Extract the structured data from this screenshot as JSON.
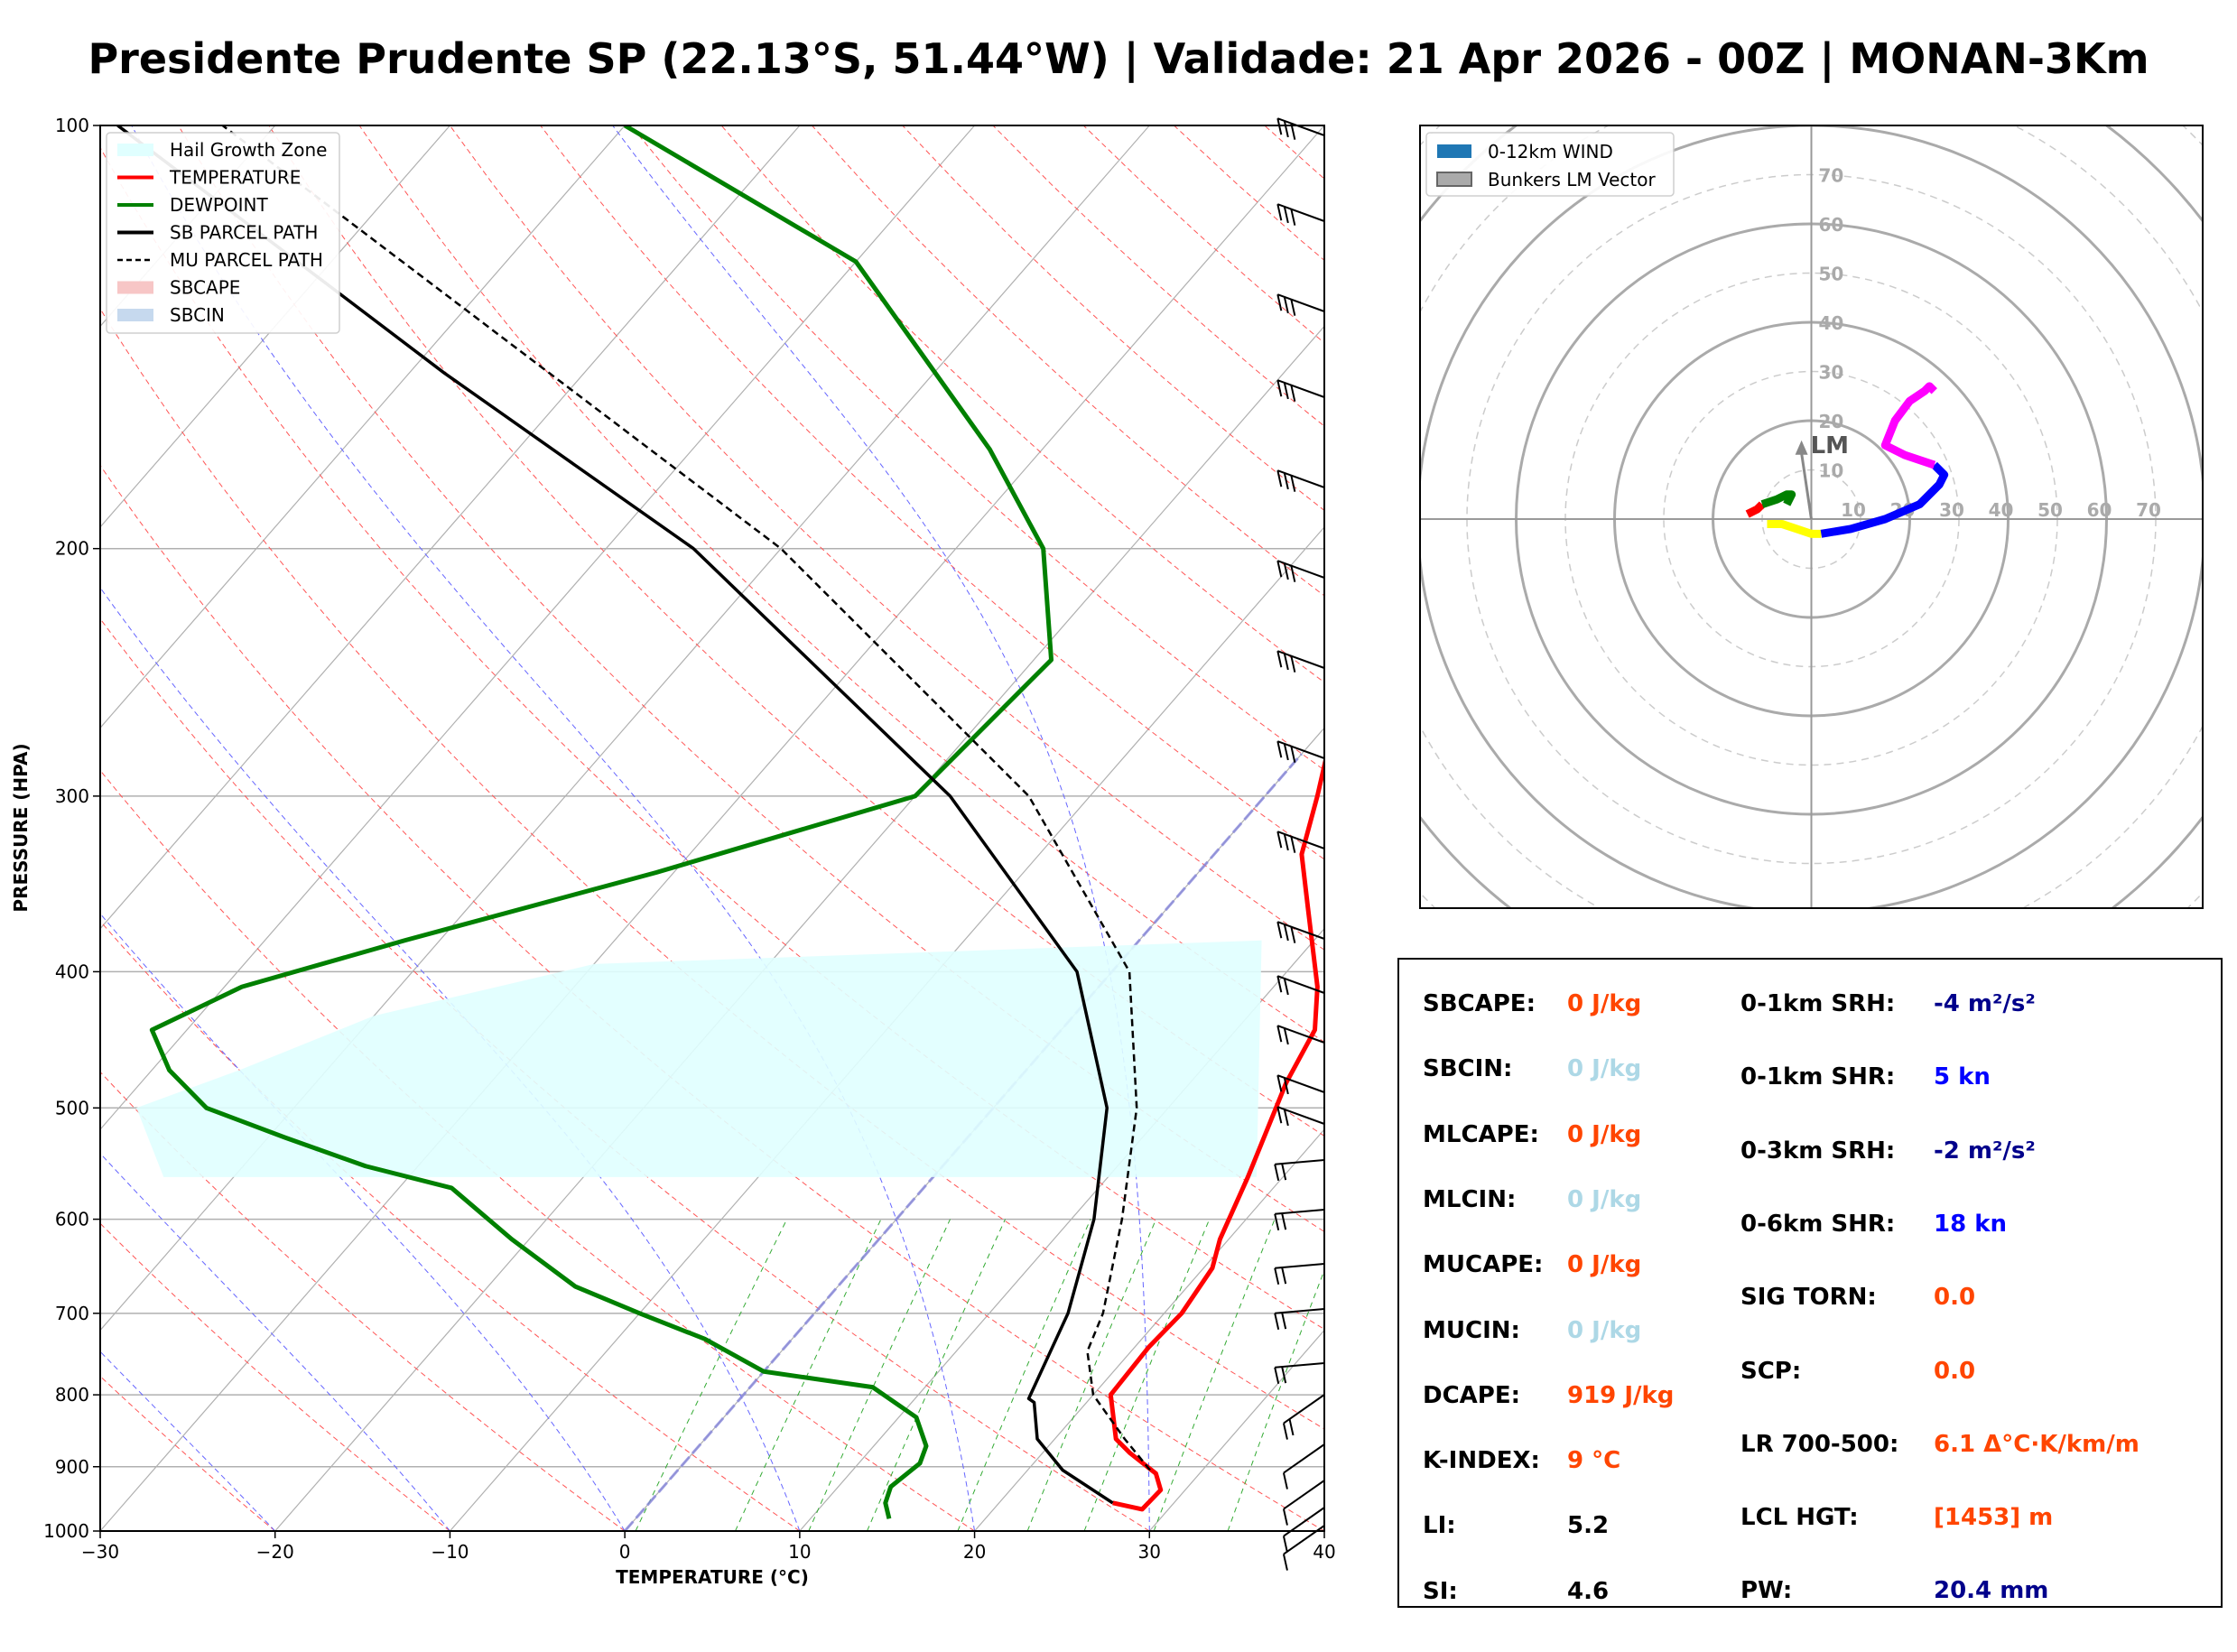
{
  "title": "Presidente Prudente SP (22.13°S, 51.44°W) | Validade: 21 Apr 2026 - 00Z | MONAN-3Km",
  "skewt": {
    "xlabel": "TEMPERATURE (°C)",
    "ylabel": "PRESSURE (HPA)",
    "x_ticks": [
      "−30",
      "−20",
      "−10",
      "0",
      "10",
      "20",
      "30",
      "40"
    ],
    "y_ticks": [
      "100",
      "200",
      "300",
      "400",
      "500",
      "600",
      "700",
      "800",
      "900",
      "1000"
    ],
    "legend": [
      {
        "label": "Hail Growth Zone",
        "color": "#e0ffff",
        "kind": "patch"
      },
      {
        "label": "TEMPERATURE",
        "color": "#ff0000",
        "kind": "line"
      },
      {
        "label": "DEWPOINT",
        "color": "#008000",
        "kind": "line"
      },
      {
        "label": "SB PARCEL PATH",
        "color": "#000000",
        "kind": "line"
      },
      {
        "label": "MU PARCEL PATH",
        "color": "#000000",
        "kind": "dashed"
      },
      {
        "label": "SBCAPE",
        "color": "#f7c6c6",
        "kind": "patch"
      },
      {
        "label": "SBCIN",
        "color": "#c6d9ee",
        "kind": "patch"
      }
    ],
    "colors": {
      "temperature": "#ff0000",
      "dewpoint": "#008000",
      "parcel": "#000000",
      "hail_zone": "#e0ffff"
    }
  },
  "hodograph": {
    "legend": [
      {
        "label": "0-12km WIND",
        "color": "#1f77b4"
      },
      {
        "label": "Bunkers LM Vector",
        "color": "#aaaaaa"
      }
    ],
    "ring_labels": [
      "10",
      "20",
      "30",
      "40",
      "50",
      "60",
      "70"
    ],
    "lm_label": "LM"
  },
  "parameters": {
    "left": [
      {
        "label": "SBCAPE:",
        "value": "0 J/kg",
        "color": "#ff4500"
      },
      {
        "label": "SBCIN:",
        "value": "0 J/kg",
        "color": "#add8e6"
      },
      {
        "label": "MLCAPE:",
        "value": "0 J/kg",
        "color": "#ff4500"
      },
      {
        "label": "MLCIN:",
        "value": "0 J/kg",
        "color": "#add8e6"
      },
      {
        "label": "MUCAPE:",
        "value": "0 J/kg",
        "color": "#ff4500"
      },
      {
        "label": "MUCIN:",
        "value": "0 J/kg",
        "color": "#add8e6"
      },
      {
        "label": "DCAPE:",
        "value": "919 J/kg",
        "color": "#ff4500"
      },
      {
        "label": "K-INDEX:",
        "value": "9 °C",
        "color": "#ff4500"
      },
      {
        "label": "LI:",
        "value": "5.2",
        "color": "#000000"
      },
      {
        "label": "SI:",
        "value": "4.6",
        "color": "#000000"
      }
    ],
    "right": [
      {
        "label": "0-1km SRH:",
        "value": "-4 m²/s²",
        "color": "#00008b"
      },
      {
        "label": "0-1km SHR:",
        "value": "5 kn",
        "color": "#0000ff"
      },
      {
        "label": "0-3km SRH:",
        "value": "-2 m²/s²",
        "color": "#00008b"
      },
      {
        "label": "0-6km SHR:",
        "value": "18 kn",
        "color": "#0000ff"
      },
      {
        "label": "SIG TORN:",
        "value": "0.0",
        "color": "#ff4500"
      },
      {
        "label": "SCP:",
        "value": "0.0",
        "color": "#ff4500"
      },
      {
        "label": "LR 700-500:",
        "value": "6.1 Δ°C·K/km/m",
        "color": "#ff4500"
      },
      {
        "label": "LCL HGT:",
        "value": "[1453] m",
        "color": "#ff4500"
      },
      {
        "label": "PW:",
        "value": "20.4 mm",
        "color": "#00008b"
      }
    ]
  },
  "chart_data": [
    {
      "type": "line",
      "subtype": "skew-t log-p",
      "xlabel": "TEMPERATURE (°C)",
      "ylabel": "PRESSURE (HPA)",
      "xlim": [
        -30,
        40
      ],
      "ylim": [
        1000,
        100
      ],
      "y_scale": "log",
      "series": [
        {
          "name": "TEMPERATURE",
          "p": [
            955,
            965,
            935,
            910,
            880,
            860,
            800,
            740,
            700,
            650,
            620,
            560,
            480,
            440,
            410,
            360,
            330,
            300,
            240,
            200,
            175,
            150,
            135,
            100
          ],
          "t": [
            26.5,
            28.5,
            28.6,
            27.5,
            25,
            23.5,
            21,
            20.8,
            21,
            20.5,
            19.5,
            18,
            15.5,
            14.5,
            12.5,
            8,
            5,
            3,
            -2,
            -4,
            -5,
            -4,
            -2,
            5
          ]
        },
        {
          "name": "DEWPOINT",
          "p": [
            980,
            955,
            930,
            895,
            870,
            830,
            790,
            770,
            730,
            700,
            670,
            620,
            570,
            550,
            525,
            500,
            470,
            440,
            410,
            380,
            340,
            300,
            240,
            200,
            170,
            125,
            100
          ],
          "t": [
            14.5,
            13.5,
            13,
            13.5,
            13,
            11,
            7,
            0,
            -5,
            -10,
            -15,
            -21,
            -27,
            -33,
            -39,
            -45,
            -49,
            -52,
            -49,
            -42,
            -31,
            -20,
            -19,
            -25,
            -33,
            -50,
            -70
          ]
        },
        {
          "name": "SB PARCEL PATH",
          "p": [
            955,
            905,
            860,
            810,
            805,
            700,
            600,
            500,
            400,
            300,
            200,
            150,
            100
          ],
          "t": [
            26.5,
            22,
            19,
            17,
            16.5,
            14.5,
            11.3,
            6.5,
            -2,
            -18,
            -45,
            -68,
            -99
          ]
        },
        {
          "name": "MU PARCEL PATH",
          "p": [
            905,
            860,
            800,
            745,
            700,
            600,
            500,
            400,
            300,
            200,
            150,
            100
          ],
          "t": [
            27,
            24,
            20,
            17.5,
            16.5,
            12.9,
            8.2,
            1,
            -13.5,
            -40,
            -62,
            -93
          ]
        }
      ],
      "hail_growth_zone": {
        "top_p": 390,
        "bottom_p": 560,
        "t_min_c": -20,
        "t_max_c": -10
      }
    },
    {
      "type": "line",
      "subtype": "hodograph",
      "ring_interval_kn": 10,
      "rings_max_kn": 70,
      "segments": [
        {
          "color": "#ff0000",
          "u": [
            -13,
            -11,
            -10
          ],
          "v": [
            1,
            2,
            3
          ]
        },
        {
          "color": "#008000",
          "u": [
            -10,
            -7,
            -5,
            -4,
            -5
          ],
          "v": [
            3,
            4,
            5,
            5,
            3
          ]
        },
        {
          "color": "#ffff00",
          "u": [
            -9,
            -6,
            -3,
            0,
            2
          ],
          "v": [
            -1,
            -1,
            -2,
            -3,
            -3
          ]
        },
        {
          "color": "#0000ff",
          "u": [
            2,
            8,
            15,
            22,
            26,
            27,
            25
          ],
          "v": [
            -3,
            -2,
            0,
            3,
            7,
            9,
            11
          ]
        },
        {
          "color": "#ff00ff",
          "u": [
            25,
            19,
            15,
            17,
            20,
            23,
            24,
            25
          ],
          "v": [
            11,
            13,
            15,
            20,
            24,
            26,
            27,
            26
          ]
        }
      ],
      "bunkers_lm": {
        "u": -2,
        "v": 16
      }
    }
  ]
}
